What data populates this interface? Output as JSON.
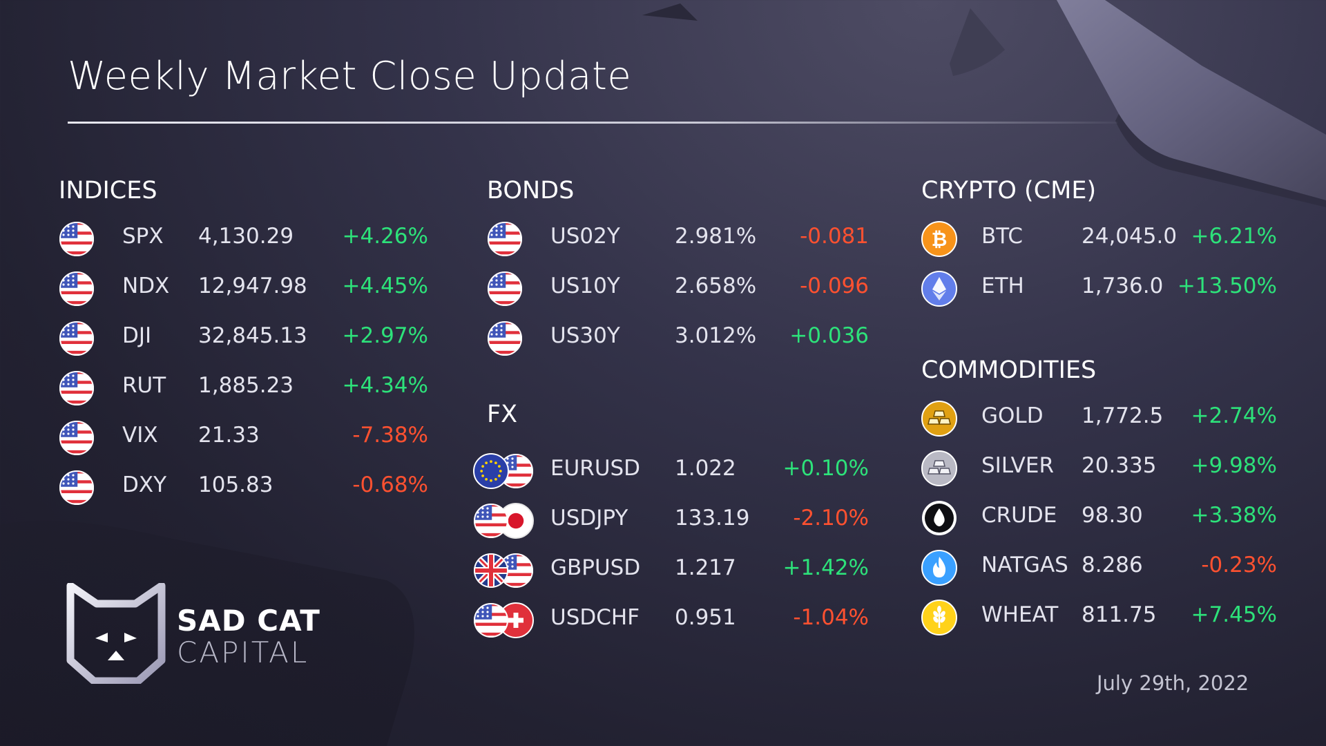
{
  "title": "Weekly Market Close Update",
  "colors": {
    "positive": "#2de27a",
    "negative": "#ff5130",
    "background": "#2b2a3d"
  },
  "indices": {
    "title": "INDICES",
    "rows": [
      {
        "ticker": "SPX",
        "value": "4,130.29",
        "change": "+4.26%",
        "icon": "us-flag-icon"
      },
      {
        "ticker": "NDX",
        "value": "12,947.98",
        "change": "+4.45%",
        "icon": "us-flag-icon"
      },
      {
        "ticker": "DJI",
        "value": "32,845.13",
        "change": "+2.97%",
        "icon": "us-flag-icon"
      },
      {
        "ticker": "RUT",
        "value": "1,885.23",
        "change": "+4.34%",
        "icon": "us-flag-icon"
      },
      {
        "ticker": "VIX",
        "value": "21.33",
        "change": "-7.38%",
        "icon": "us-flag-icon"
      },
      {
        "ticker": "DXY",
        "value": "105.83",
        "change": "-0.68%",
        "icon": "us-flag-icon"
      }
    ]
  },
  "bonds": {
    "title": "BONDS",
    "rows": [
      {
        "ticker": "US02Y",
        "value": "2.981%",
        "change": "-0.081",
        "icon": "us-flag-icon"
      },
      {
        "ticker": "US10Y",
        "value": "2.658%",
        "change": "-0.096",
        "icon": "us-flag-icon"
      },
      {
        "ticker": "US30Y",
        "value": "3.012%",
        "change": "+0.036",
        "icon": "us-flag-icon"
      }
    ]
  },
  "fx": {
    "title": "FX",
    "rows": [
      {
        "ticker": "EURUSD",
        "value": "1.022",
        "change": "+0.10%",
        "icon": "eu-us-flags-icon"
      },
      {
        "ticker": "USDJPY",
        "value": "133.19",
        "change": "-2.10%",
        "icon": "us-jp-flags-icon"
      },
      {
        "ticker": "GBPUSD",
        "value": "1.217",
        "change": "+1.42%",
        "icon": "gb-us-flags-icon"
      },
      {
        "ticker": "USDCHF",
        "value": "0.951",
        "change": "-1.04%",
        "icon": "us-ch-flags-icon"
      }
    ]
  },
  "crypto": {
    "title": "CRYPTO (CME)",
    "rows": [
      {
        "ticker": "BTC",
        "value": "24,045.0",
        "change": "+6.21%",
        "icon": "bitcoin-icon"
      },
      {
        "ticker": "ETH",
        "value": "1,736.0",
        "change": "+13.50%",
        "icon": "ethereum-icon"
      }
    ]
  },
  "commodities": {
    "title": "COMMODITIES",
    "rows": [
      {
        "ticker": "GOLD",
        "value": "1,772.5",
        "change": "+2.74%",
        "icon": "gold-bars-icon"
      },
      {
        "ticker": "SILVER",
        "value": "20.335",
        "change": "+9.98%",
        "icon": "silver-bars-icon"
      },
      {
        "ticker": "CRUDE",
        "value": "98.30",
        "change": "+3.38%",
        "icon": "oil-drop-icon"
      },
      {
        "ticker": "NATGAS",
        "value": "8.286",
        "change": "-0.23%",
        "icon": "gas-flame-icon"
      },
      {
        "ticker": "WHEAT",
        "value": "811.75",
        "change": "+7.45%",
        "icon": "wheat-icon"
      }
    ]
  },
  "brand": {
    "line1": "SAD CAT",
    "line2": "CAPITAL",
    "logo": "cat-logo-icon"
  },
  "date": "July 29th, 2022"
}
